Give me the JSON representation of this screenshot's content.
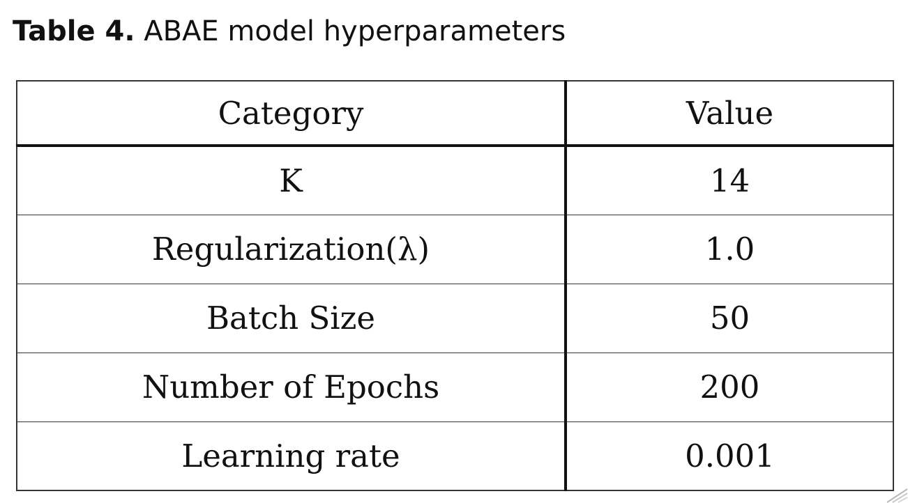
{
  "caption": {
    "label": "Table 4.",
    "text": "ABAE model hyperparameters"
  },
  "table": {
    "headers": [
      "Category",
      "Value"
    ],
    "rows": [
      {
        "category": "K",
        "value": "14"
      },
      {
        "category": "Regularization(λ)",
        "value": "1.0"
      },
      {
        "category": "Batch Size",
        "value": "50"
      },
      {
        "category": "Number of Epochs",
        "value": "200"
      },
      {
        "category": "Learning rate",
        "value": "0.001"
      }
    ]
  },
  "chart_data": {
    "type": "table",
    "columns": [
      "Category",
      "Value"
    ],
    "rows": [
      [
        "K",
        "14"
      ],
      [
        "Regularization(λ)",
        "1.0"
      ],
      [
        "Batch Size",
        "50"
      ],
      [
        "Number of Epochs",
        "200"
      ],
      [
        "Learning rate",
        "0.001"
      ]
    ]
  }
}
